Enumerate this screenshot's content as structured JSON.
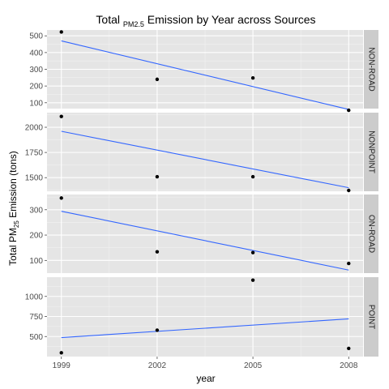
{
  "chart_data": {
    "type": "scatter",
    "title": {
      "prefix": "Total ",
      "subscript": "PM2.5",
      "suffix": " Emission by Year across Sources"
    },
    "xlabel": "year",
    "ylabel": {
      "prefix": "Total PM",
      "subscript": "25",
      "suffix": " Emission (tons)"
    },
    "x_ticks": [
      1999,
      2002,
      2005,
      2008
    ],
    "x_range": [
      1998.55,
      2008.45
    ],
    "grid": true,
    "colors": {
      "panel_bg": "#e5e5e5",
      "grid_major": "#ffffff",
      "grid_minor": "#f2f2f2",
      "strip_bg": "#cccccc",
      "point": "#000000",
      "trend_line": "#3366ff"
    },
    "panels": [
      {
        "name": "NON-ROAD",
        "ylim": [
          65,
          535
        ],
        "y_ticks": [
          100,
          200,
          300,
          400,
          500
        ],
        "points": [
          [
            1999,
            523
          ],
          [
            2002,
            240
          ],
          [
            2005,
            248
          ],
          [
            2008,
            55
          ]
        ],
        "trend": [
          [
            1999,
            470
          ],
          [
            2008,
            60
          ]
        ]
      },
      {
        "name": "NONPOINT",
        "ylim": [
          1365,
          2145
        ],
        "y_ticks": [
          1500,
          1750,
          2000
        ],
        "points": [
          [
            1999,
            2107
          ],
          [
            2002,
            1509
          ],
          [
            2005,
            1509
          ],
          [
            2008,
            1373
          ]
        ],
        "trend": [
          [
            1999,
            1960
          ],
          [
            2008,
            1400
          ]
        ]
      },
      {
        "name": "ON-ROAD",
        "ylim": [
          50,
          360
        ],
        "y_ticks": [
          100,
          200,
          300
        ],
        "points": [
          [
            1999,
            346
          ],
          [
            2002,
            134
          ],
          [
            2005,
            131
          ],
          [
            2008,
            88
          ]
        ],
        "trend": [
          [
            1999,
            294
          ],
          [
            2008,
            62
          ]
        ]
      },
      {
        "name": "POINT",
        "ylim": [
          250,
          1240
        ],
        "y_ticks": [
          500,
          750,
          1000
        ],
        "points": [
          [
            1999,
            297
          ],
          [
            2002,
            579
          ],
          [
            2005,
            1203
          ],
          [
            2008,
            352
          ]
        ],
        "trend": [
          [
            1999,
            487
          ],
          [
            2008,
            720
          ]
        ]
      }
    ]
  }
}
